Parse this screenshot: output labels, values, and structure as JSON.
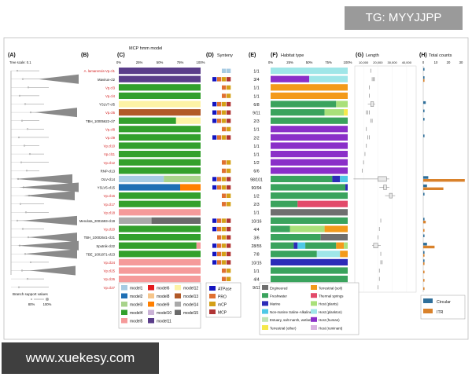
{
  "watermark_top": "TG: MYYJJPP",
  "watermark_bottom": "www.xuekesy.com",
  "panels": {
    "a": "(A)",
    "b": "(B)",
    "c": "(C)",
    "d": "(D)",
    "e": "(E)",
    "f": "(F)",
    "g": "(G)",
    "h": "(H)"
  },
  "tree_scale": "Tree scale: 0.1",
  "branch_support": {
    "title": "Branch support values",
    "low": "80%",
    "high": "100%"
  },
  "titles": {
    "mcp": "MCP hmm model",
    "synteny": "Synteny",
    "habitat": "Habitat type",
    "length": "Length",
    "total": "Total counts"
  },
  "pct_ticks": [
    "0%",
    "25%",
    "50%",
    "75%",
    "100%"
  ],
  "length_ticks": [
    "10,000",
    "20,000",
    "30,000",
    "40,000"
  ],
  "count_ticks": [
    "0",
    "10",
    "20",
    "30"
  ],
  "colors": {
    "model1": "#a6cbe3",
    "model2": "#1f6fb4",
    "model3": "#a8d38b",
    "model4": "#33a02c",
    "model5": "#f59a9a",
    "model6": "#e31a1c",
    "model8": "#f6c58a",
    "model9": "#ff7f00",
    "model10": "#cab2d6",
    "model11": "#5a3d8a",
    "model12": "#fdf3a6",
    "model13": "#b15928",
    "model14": "#a9a9a9",
    "model15": "#6a6a6a",
    "Engineered": "#6f6f6f",
    "Freshwater": "#3aa35d",
    "Marine": "#2b2bb8",
    "NonMarine": "#4ec8e6",
    "Estuary": "#bfe3b5",
    "Terrestrial_other": "#f5e84a",
    "Terrestrial_soil": "#f39a1a",
    "Thermal": "#e24a6a",
    "Host_plants": "#a9e07a",
    "Host_plankton": "#9fe6e8",
    "Host_human": "#8a2fc8",
    "Host_ruminant": "#d8b2e0",
    "ATPase": "#1515c0",
    "PRO": "#e07030",
    "mCP": "#d4a017",
    "MCP": "#b03535",
    "circular": "#2f6f9a",
    "itr": "#d9822b",
    "red_label": "#d42020"
  },
  "legend_mcp": [
    "model1",
    "model2",
    "model3",
    "model4",
    "model5",
    "model6",
    "model8",
    "model9",
    "model10",
    "model11",
    "model12",
    "model13",
    "model14",
    "model15"
  ],
  "legend_synteny": [
    "ATPase",
    "PRO",
    "mCP",
    "MCP"
  ],
  "legend_habitat": [
    {
      "label": "Engineered",
      "color": "Engineered"
    },
    {
      "label": "Terrestrial (soil)",
      "color": "Terrestrial_soil"
    },
    {
      "label": "Freshwater",
      "color": "Freshwater"
    },
    {
      "label": "Thermal springs",
      "color": "Thermal"
    },
    {
      "label": "Marine",
      "color": "Marine"
    },
    {
      "label": "Host (plants)",
      "color": "Host_plants"
    },
    {
      "label": "Non-marine Saline-Alkaline",
      "color": "NonMarine"
    },
    {
      "label": "Host (plankton)",
      "color": "Host_plankton"
    },
    {
      "label": "Estuary, salt marsh, wetland",
      "color": "Estuary"
    },
    {
      "label": "Host (human)",
      "color": "Host_human"
    },
    {
      "label": "Terrestrial (other)",
      "color": "Terrestrial_other"
    },
    {
      "label": "Host (ruminant)",
      "color": "Host_ruminant"
    }
  ],
  "legend_counts": [
    "Circular",
    "ITR"
  ],
  "rows": [
    {
      "name": "A. lamarensis-Vp.cl1",
      "red": true,
      "mcp": [
        [
          "model11",
          100
        ]
      ],
      "syn": [
        "model1",
        "model1"
      ],
      "count": "1/1",
      "hab": [
        [
          "Host_plankton",
          100
        ]
      ],
      "len": [
        15
      ],
      "circ": 1,
      "itr": 0
    },
    {
      "name": "Mavirus-cl2",
      "red": false,
      "mcp": [
        [
          "model11",
          100
        ]
      ],
      "syn": [
        "ATPase",
        "PRO",
        "mCP",
        "MCP"
      ],
      "count": "3/4",
      "hab": [
        [
          "Host_human",
          50
        ],
        [
          "Host_plankton",
          50
        ]
      ],
      "len": [
        16,
        17,
        17.5
      ],
      "circ": 1,
      "itr": 1
    },
    {
      "name": "Vp.cl3",
      "red": true,
      "mcp": [
        [
          "model4",
          100
        ]
      ],
      "syn": [
        "PRO",
        "mCP"
      ],
      "count": "1/1",
      "hab": [
        [
          "Terrestrial_soil",
          100
        ]
      ],
      "len": [
        14
      ],
      "circ": 0,
      "itr": 0
    },
    {
      "name": "Vp.cl4",
      "red": true,
      "mcp": [
        [
          "model4",
          100
        ]
      ],
      "syn": [
        "PRO",
        "mCP"
      ],
      "count": "1/1",
      "hab": [
        [
          "Terrestrial_soil",
          100
        ]
      ],
      "len": [
        14
      ],
      "circ": 0,
      "itr": 0
    },
    {
      "name": "YSLV7-cl5",
      "red": false,
      "mcp": [
        [
          "model12",
          100
        ]
      ],
      "syn": [
        "ATPase",
        "PRO",
        "mCP",
        "MCP"
      ],
      "count": "6/8",
      "hab": [
        [
          "Freshwater",
          85
        ],
        [
          "Host_plants",
          15
        ]
      ],
      "len": [
        13,
        15,
        16,
        17,
        18
      ],
      "circ": 2,
      "itr": 0
    },
    {
      "name": "Vp.cl6",
      "red": true,
      "mcp": [
        [
          "model13",
          100
        ]
      ],
      "syn": [
        "ATPase",
        "PRO",
        "mCP",
        "MCP"
      ],
      "count": "9/11",
      "hab": [
        [
          "Freshwater",
          70
        ],
        [
          "Host_plants",
          25
        ],
        [
          "Terrestrial_other",
          5
        ]
      ],
      "len": [
        12,
        13,
        14
      ],
      "circ": 1,
      "itr": 0
    },
    {
      "name": "TBH_10005622-cl7",
      "red": false,
      "mcp": [
        [
          "model4",
          70
        ],
        [
          "model12",
          30
        ]
      ],
      "syn": [
        "ATPase",
        "PRO",
        "mCP",
        "MCP"
      ],
      "count": "2/3",
      "hab": [
        [
          "Freshwater",
          100
        ]
      ],
      "len": [
        15,
        16
      ],
      "circ": 1,
      "itr": 0
    },
    {
      "name": "Vp.cl8",
      "red": true,
      "mcp": [
        [
          "model4",
          100
        ]
      ],
      "syn": [
        "PRO",
        "mCP"
      ],
      "count": "1/1",
      "hab": [
        [
          "Host_human",
          100
        ]
      ],
      "len": [
        12
      ],
      "circ": 0,
      "itr": 0
    },
    {
      "name": "Vp.cl9",
      "red": true,
      "mcp": [
        [
          "model4",
          100
        ]
      ],
      "syn": [
        "ATPase",
        "PRO",
        "mCP",
        "MCP"
      ],
      "count": "2/2",
      "hab": [
        [
          "Host_human",
          100
        ]
      ],
      "len": [
        13,
        14
      ],
      "circ": 1,
      "itr": 0
    },
    {
      "name": "Vp.cl10",
      "red": true,
      "mcp": [
        [
          "model4",
          100
        ]
      ],
      "syn": [],
      "count": "1/1",
      "hab": [
        [
          "Host_human",
          100
        ]
      ],
      "len": [
        12
      ],
      "circ": 0,
      "itr": 0
    },
    {
      "name": "Vp.cl11",
      "red": true,
      "mcp": [
        [
          "model4",
          100
        ]
      ],
      "syn": [],
      "count": "1/1",
      "hab": [
        [
          "Host_human",
          100
        ]
      ],
      "len": [
        11
      ],
      "circ": 0,
      "itr": 0
    },
    {
      "name": "Vp.cl12",
      "red": true,
      "mcp": [
        [
          "model4",
          100
        ]
      ],
      "syn": [
        "PRO",
        "mCP"
      ],
      "count": "1/2",
      "hab": [
        [
          "Host_human",
          100
        ]
      ],
      "len": [
        10
      ],
      "circ": 0,
      "itr": 0
    },
    {
      "name": "RNP-cl13",
      "red": false,
      "mcp": [
        [
          "model4",
          100
        ]
      ],
      "syn": [
        "PRO",
        "mCP"
      ],
      "count": "6/6",
      "hab": [
        [
          "Host_human",
          100
        ]
      ],
      "len": [
        9
      ],
      "circ": 0,
      "itr": 0
    },
    {
      "name": "OLV-cl14",
      "red": false,
      "mcp": [
        [
          "model1",
          55
        ],
        [
          "model3",
          45
        ]
      ],
      "syn": [
        "ATPase",
        "PRO",
        "mCP",
        "MCP"
      ],
      "count": "98/101",
      "hab": [
        [
          "Freshwater",
          80
        ],
        [
          "Marine",
          10
        ],
        [
          "NonMarine",
          10
        ]
      ],
      "len": [
        3,
        20,
        22,
        24,
        26,
        28
      ],
      "circ": 4,
      "itr": 33
    },
    {
      "name": "YSLV5-cl15",
      "red": false,
      "mcp": [
        [
          "model2",
          75
        ],
        [
          "model9",
          25
        ]
      ],
      "syn": [
        "ATPase",
        "PRO",
        "mCP",
        "MCP"
      ],
      "count": "90/94",
      "hab": [
        [
          "Freshwater",
          97
        ],
        [
          "Marine",
          3
        ]
      ],
      "len": [
        21,
        24,
        26,
        28
      ],
      "circ": 3,
      "itr": 16
    },
    {
      "name": "Vp.cl16",
      "red": true,
      "mcp": [
        [
          "model4",
          100
        ]
      ],
      "syn": [
        "PRO",
        "mCP"
      ],
      "count": "1/2",
      "hab": [
        [
          "Freshwater",
          100
        ]
      ],
      "len": [
        25,
        28,
        30,
        32
      ],
      "circ": 1,
      "itr": 0
    },
    {
      "name": "Vp.cl17",
      "red": true,
      "mcp": [
        [
          "model4",
          100
        ]
      ],
      "syn": [
        "PRO",
        "mCP"
      ],
      "count": "2/3",
      "hab": [
        [
          "Freshwater",
          35
        ],
        [
          "Thermal",
          65
        ]
      ],
      "len": [],
      "circ": 0,
      "itr": 0
    },
    {
      "name": "Vp.cl18",
      "red": true,
      "mcp": [
        [
          "model5",
          100
        ]
      ],
      "syn": [],
      "count": "1/1",
      "hab": [
        [
          "Engineered",
          100
        ]
      ],
      "len": [],
      "circ": 0,
      "itr": 0
    },
    {
      "name": "Mendota_2001693-cl19",
      "red": false,
      "mcp": [
        [
          "model14",
          40
        ],
        [
          "model15",
          60
        ]
      ],
      "syn": [
        "ATPase",
        "PRO",
        "mCP",
        "MCP"
      ],
      "count": "10/16",
      "hab": [
        [
          "Freshwater",
          100
        ]
      ],
      "len": [
        22
      ],
      "circ": 1,
      "itr": 2
    },
    {
      "name": "Vp.cl20",
      "red": true,
      "mcp": [
        [
          "model4",
          100
        ]
      ],
      "syn": [
        "ATPase",
        "PRO",
        "mCP",
        "MCP"
      ],
      "count": "4/4",
      "hab": [
        [
          "Freshwater",
          25
        ],
        [
          "Host_plants",
          45
        ],
        [
          "Terrestrial_soil",
          30
        ]
      ],
      "len": [
        21
      ],
      "circ": 0,
      "itr": 1
    },
    {
      "name": "TBH_10002641-cl21",
      "red": false,
      "mcp": [
        [
          "model4",
          100
        ]
      ],
      "syn": [
        "PRO",
        "mCP",
        "MCP"
      ],
      "count": "3/6",
      "hab": [
        [
          "Freshwater",
          65
        ],
        [
          "Engineered",
          35
        ]
      ],
      "len": [
        20
      ],
      "circ": 1,
      "itr": 0
    },
    {
      "name": "Sputnik-cl22",
      "red": false,
      "mcp": [
        [
          "model4",
          95
        ],
        [
          "model5",
          5
        ]
      ],
      "syn": [
        "ATPase",
        "PRO",
        "mCP",
        "MCP"
      ],
      "count": "28/55",
      "hab": [
        [
          "Freshwater",
          30
        ],
        [
          "Marine",
          5
        ],
        [
          "NonMarine",
          10
        ],
        [
          "Freshwater",
          40
        ],
        [
          "Terrestrial_soil",
          10
        ],
        [
          "Host_plants",
          5
        ]
      ],
      "len": [
        16,
        17,
        18,
        20,
        22
      ],
      "circ": 3,
      "itr": 9
    },
    {
      "name": "TBE_1001871-cl23",
      "red": false,
      "mcp": [
        [
          "model4",
          100
        ]
      ],
      "syn": [
        "ATPase",
        "PRO",
        "mCP",
        "MCP"
      ],
      "count": "7/8",
      "hab": [
        [
          "Freshwater",
          60
        ],
        [
          "Host_plankton",
          30
        ],
        [
          "Terrestrial_soil",
          10
        ]
      ],
      "len": [
        22
      ],
      "circ": 1,
      "itr": 1
    },
    {
      "name": "Vp.cl24",
      "red": true,
      "mcp": [
        [
          "model5",
          100
        ]
      ],
      "syn": [
        "ATPase",
        "PRO",
        "mCP",
        "MCP"
      ],
      "count": "10/15",
      "hab": [
        [
          "Marine",
          100
        ]
      ],
      "len": [
        22,
        23
      ],
      "circ": 1,
      "itr": 1
    },
    {
      "name": "Vp.cl25",
      "red": true,
      "mcp": [
        [
          "model5",
          100
        ]
      ],
      "syn": [
        "PRO",
        "mCP"
      ],
      "count": "1/1",
      "hab": [
        [
          "Freshwater",
          100
        ]
      ],
      "len": [
        21
      ],
      "circ": 0,
      "itr": 1
    },
    {
      "name": "Vp.cl26",
      "red": true,
      "mcp": [
        [
          "model5",
          100
        ]
      ],
      "syn": [
        "PRO",
        "mCP"
      ],
      "count": "4/4",
      "hab": [
        [
          "Freshwater",
          100
        ]
      ],
      "len": [
        21
      ],
      "circ": 0,
      "itr": 1
    },
    {
      "name": "Vp.cl27",
      "red": true,
      "mcp": [
        [
          "model8",
          100
        ]
      ],
      "syn": [
        "ATPase",
        "PRO",
        "mCP",
        "MCP"
      ],
      "count": "9/11",
      "hab": [
        [
          "Freshwater",
          100
        ]
      ],
      "len": [
        20
      ],
      "circ": 0,
      "itr": 1
    }
  ]
}
